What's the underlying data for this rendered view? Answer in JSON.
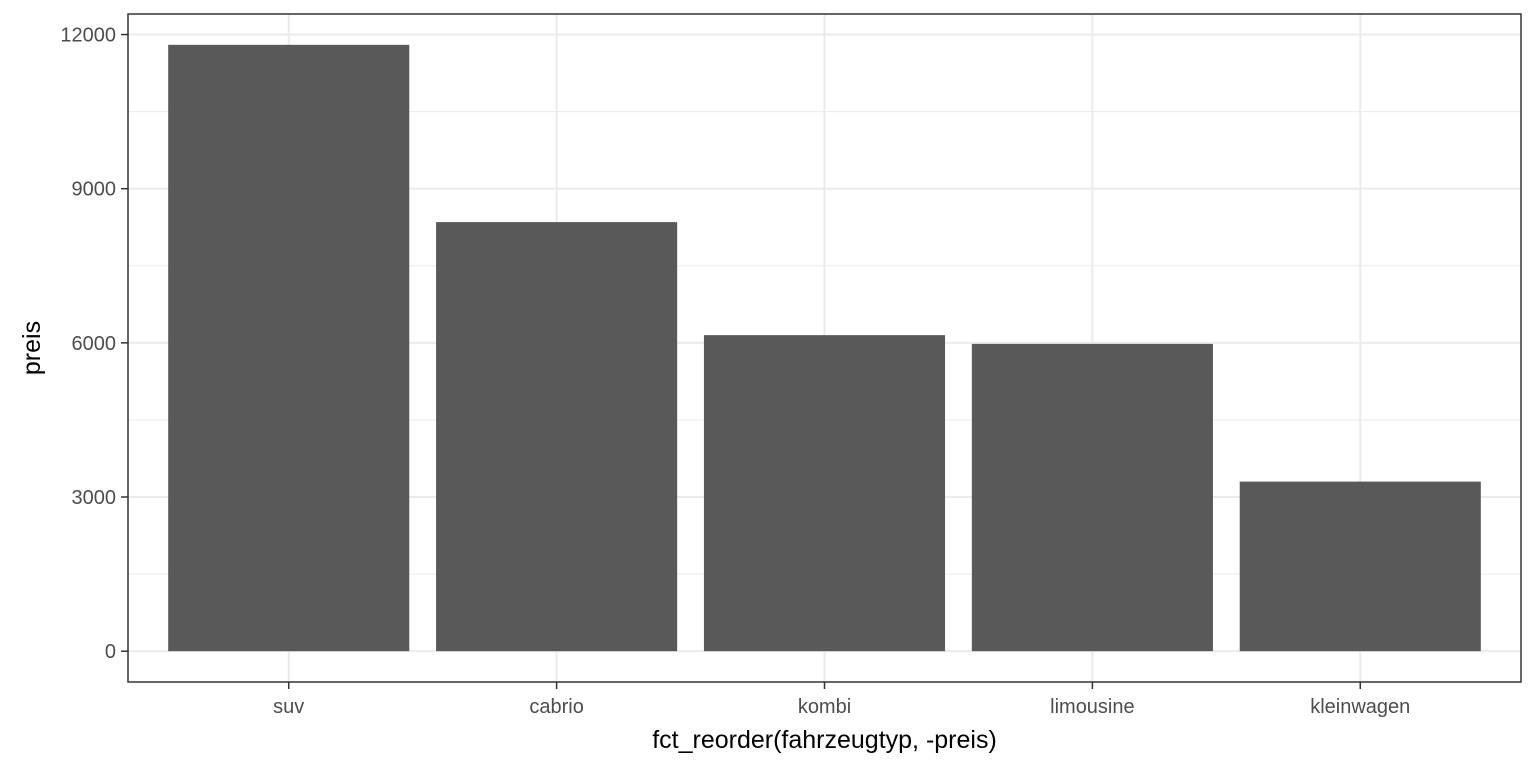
{
  "chart_data": {
    "type": "bar",
    "title": "",
    "xlabel": "fct_reorder(fahrzeugtyp, -preis)",
    "ylabel": "preis",
    "categories": [
      "suv",
      "cabrio",
      "kombi",
      "limousine",
      "kleinwagen"
    ],
    "values": [
      11800,
      8350,
      6150,
      5980,
      3300
    ],
    "ylim": [
      -600,
      12400
    ],
    "yticks": [
      0,
      3000,
      6000,
      9000,
      12000
    ],
    "ytick_labels": [
      "0",
      "3000",
      "6000",
      "9000",
      "12000"
    ],
    "grid": true,
    "legend": "none",
    "colors": {
      "bar": "#595959",
      "grid": "#ebebeb",
      "panel_border": "#333333",
      "background": "#ffffff"
    }
  }
}
